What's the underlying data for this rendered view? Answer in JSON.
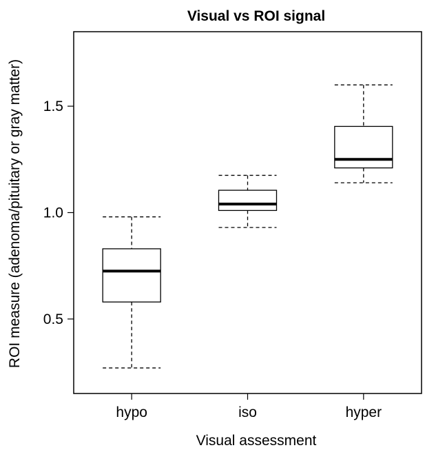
{
  "chart_data": {
    "type": "boxplot",
    "title": "Visual vs ROI signal",
    "xlabel": "Visual assessment",
    "ylabel": "ROI measure (adenoma/pituitary or gray matter)",
    "ylim": [
      0.15,
      1.85
    ],
    "yticks": [
      0.5,
      1.0,
      1.5
    ],
    "ytick_labels": [
      "0.5",
      "1.0",
      "1.5"
    ],
    "categories": [
      "hypo",
      "iso",
      "hyper"
    ],
    "boxes": [
      {
        "category": "hypo",
        "whisker_low": 0.27,
        "q1": 0.58,
        "median": 0.725,
        "q3": 0.83,
        "whisker_high": 0.98
      },
      {
        "category": "iso",
        "whisker_low": 0.93,
        "q1": 1.01,
        "median": 1.04,
        "q3": 1.105,
        "whisker_high": 1.175
      },
      {
        "category": "hyper",
        "whisker_low": 1.14,
        "q1": 1.21,
        "median": 1.25,
        "q3": 1.405,
        "whisker_high": 1.6
      }
    ],
    "grid": false,
    "legend": "none"
  }
}
